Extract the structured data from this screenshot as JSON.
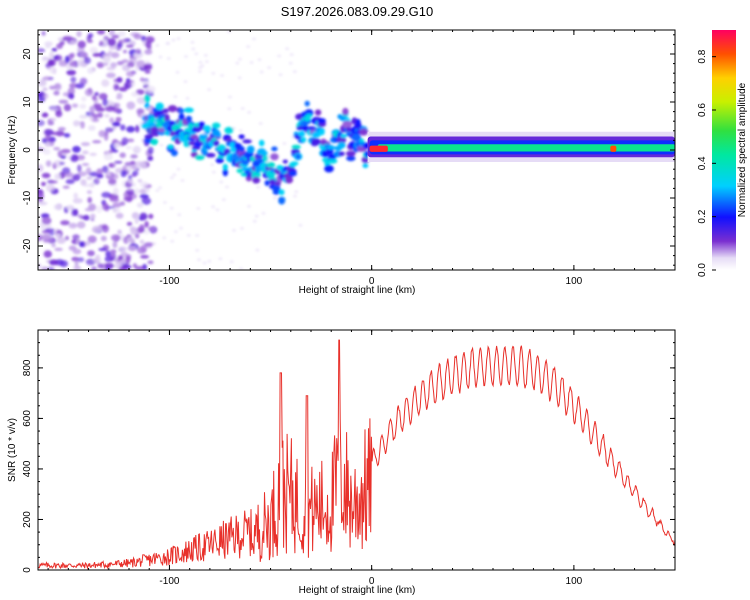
{
  "title": "S197.2026.083.09.29.G10",
  "colors": {
    "line": "#e8302a",
    "axis": "#000000",
    "background": "#ffffff"
  },
  "chart_data": [
    {
      "type": "heatmap",
      "xlabel": "Height of straight line (km)",
      "ylabel": "Frequency (Hz)",
      "xlim": [
        -165,
        150
      ],
      "ylim": [
        -25,
        25
      ],
      "xticks": [
        -100,
        0,
        100
      ],
      "xtick_labels": [
        "-100",
        "0",
        "100"
      ],
      "yticks": [
        -20,
        -10,
        0,
        10,
        20
      ],
      "ytick_labels": [
        "-20",
        "-10",
        "0",
        "10",
        "20"
      ],
      "colorbar": {
        "label": "Normalized spectral amplitude",
        "range": [
          0.0,
          0.9
        ],
        "ticks": [
          0.0,
          0.2,
          0.4,
          0.6,
          0.8
        ],
        "tick_labels": [
          "0.0",
          "0.2",
          "0.4",
          "0.6",
          "0.8"
        ]
      },
      "ridge": {
        "description_points": [
          {
            "x": -110,
            "y": 6
          },
          {
            "x": -95,
            "y": 4
          },
          {
            "x": -80,
            "y": 2
          },
          {
            "x": -65,
            "y": -1
          },
          {
            "x": -50,
            "y": -4
          },
          {
            "x": -40,
            "y": -7
          },
          {
            "x": -35,
            "y": 5
          },
          {
            "x": -28,
            "y": 4
          },
          {
            "x": -20,
            "y": 1
          },
          {
            "x": -12,
            "y": 3
          },
          {
            "x": -5,
            "y": 0
          },
          {
            "x": 0,
            "y": 0
          },
          {
            "x": 50,
            "y": 1
          },
          {
            "x": 100,
            "y": 1
          },
          {
            "x": 150,
            "y": 1
          }
        ]
      }
    },
    {
      "type": "line",
      "xlabel": "Height of straight line (km)",
      "ylabel": "SNR (10 * v/v)",
      "xlim": [
        -165,
        150
      ],
      "ylim": [
        0,
        950
      ],
      "xticks": [
        -100,
        0,
        100
      ],
      "xtick_labels": [
        "-100",
        "0",
        "100"
      ],
      "yticks": [
        0,
        200,
        400,
        600,
        800
      ],
      "ytick_labels": [
        "0",
        "200",
        "400",
        "600",
        "800"
      ],
      "series": [
        {
          "name": "SNR",
          "envelope_x": [
            -165,
            -140,
            -120,
            -100,
            -80,
            -60,
            -50,
            -45,
            -40,
            -35,
            -30,
            -20,
            -15,
            -10,
            -5,
            0,
            10,
            20,
            30,
            40,
            50,
            60,
            70,
            80,
            90,
            100,
            110,
            120,
            130,
            140,
            150
          ],
          "envelope_y": [
            20,
            20,
            30,
            60,
            110,
            170,
            250,
            400,
            380,
            320,
            300,
            340,
            500,
            330,
            380,
            450,
            600,
            700,
            780,
            830,
            860,
            870,
            870,
            850,
            790,
            700,
            580,
            450,
            330,
            220,
            120
          ]
        }
      ]
    }
  ]
}
